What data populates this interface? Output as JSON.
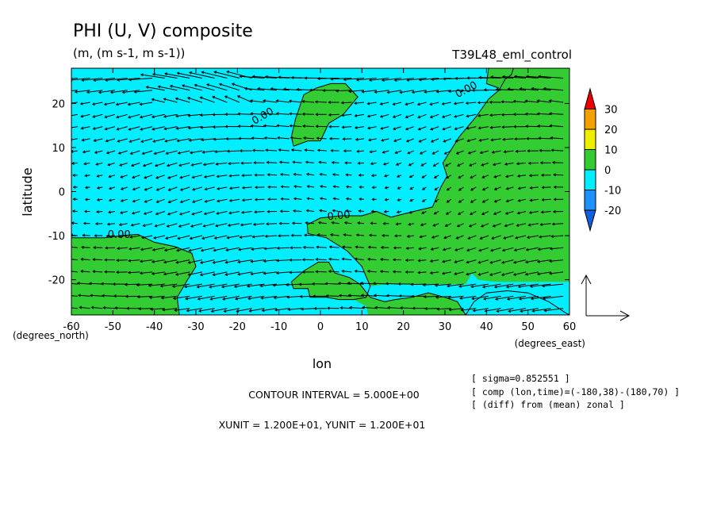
{
  "header": {
    "title": "PHI (U, V) composite",
    "units": "(m, (m s-1, m s-1))",
    "experiment": "T39L48_eml_control"
  },
  "footer": {
    "contour_interval": "CONTOUR INTERVAL = 5.000E+00",
    "vector_units": "XUNIT = 1.200E+01, YUNIT = 1.200E+01",
    "info_lines": [
      "[ sigma=0.852551 ]",
      "[ comp (lon,time)=(-180,38)-(180,70) ]",
      "[ (diff) from (mean) zonal ]"
    ]
  },
  "chart_data": {
    "type": "contour-vector",
    "xlabel": "lon",
    "ylabel": "latitude",
    "x_unit_label": "(degrees_east)",
    "y_unit_label": "(degrees_north)",
    "xlim": [
      -60,
      60
    ],
    "ylim": [
      -28,
      28
    ],
    "x_ticks": [
      -60,
      -50,
      -40,
      -30,
      -20,
      -10,
      0,
      10,
      20,
      30,
      40,
      50,
      60
    ],
    "y_ticks": [
      -20,
      -10,
      0,
      10,
      20
    ],
    "x_tick_labels": [
      "-60",
      "-50",
      "-40",
      "-30",
      "-20",
      "-10",
      "0",
      "10",
      "20",
      "30",
      "40",
      "50",
      "60"
    ],
    "y_tick_labels": [
      "-20",
      "-10",
      "0",
      "10",
      "20"
    ],
    "colorbar": {
      "labels": [
        "30",
        "20",
        "10",
        "0",
        "-10",
        "-20"
      ],
      "colors": [
        "#ee0000",
        "#f4a000",
        "#eeee00",
        "#33cc33",
        "#00eeff",
        "#1e90ff",
        "#1060e0"
      ]
    },
    "fill_colors": {
      "positive": "#33cc33",
      "negative": "#00eeff"
    },
    "contour_labels": [
      {
        "text": "0.00",
        "lon": -13.5,
        "lat": 16.5,
        "angle": -30
      },
      {
        "text": "0.00",
        "lon": 35.5,
        "lat": 22.5,
        "angle": -28
      },
      {
        "text": "0.00",
        "lon": 4.5,
        "lat": -6.2,
        "angle": -6
      },
      {
        "text": "0.00",
        "lon": -48.5,
        "lat": -10.5,
        "angle": 0
      }
    ],
    "regions": [
      {
        "name": "green-top",
        "points": [
          [
            -6.5,
            10.3
          ],
          [
            -7,
            12.5
          ],
          [
            -6,
            16.5
          ],
          [
            -4,
            22
          ],
          [
            -1,
            23.5
          ],
          [
            2.5,
            24.5
          ],
          [
            6,
            24.5
          ],
          [
            9,
            21.5
          ],
          [
            5.5,
            17.5
          ],
          [
            2,
            15.5
          ],
          [
            0,
            11.5
          ],
          [
            -3,
            11.5
          ]
        ]
      },
      {
        "name": "green-right",
        "points": [
          [
            46.5,
            28
          ],
          [
            60,
            28
          ],
          [
            60,
            -20.5
          ],
          [
            49,
            -20.5
          ],
          [
            45,
            -20.5
          ],
          [
            42,
            -20.5
          ],
          [
            38,
            -20
          ],
          [
            36.5,
            -18.5
          ],
          [
            35,
            -21
          ],
          [
            30,
            -21
          ],
          [
            25,
            -21
          ],
          [
            20,
            -21
          ],
          [
            16,
            -21
          ],
          [
            12,
            -21.5
          ],
          [
            10,
            -17
          ],
          [
            6.5,
            -13.5
          ],
          [
            1.5,
            -10.5
          ],
          [
            -3,
            -9.5
          ],
          [
            -3.2,
            -7.5
          ],
          [
            0,
            -6
          ],
          [
            5,
            -5.5
          ],
          [
            10,
            -5.5
          ],
          [
            13.5,
            -4.5
          ],
          [
            17,
            -5.8
          ],
          [
            22.5,
            -4.5
          ],
          [
            27,
            -3.5
          ],
          [
            29,
            1
          ],
          [
            30.5,
            3.5
          ],
          [
            29.5,
            6.5
          ],
          [
            31.5,
            9.5
          ],
          [
            33.5,
            12.5
          ],
          [
            37.5,
            17
          ],
          [
            40.5,
            21
          ],
          [
            43,
            23
          ],
          [
            44.5,
            25.5
          ],
          [
            46,
            26.5
          ]
        ]
      },
      {
        "name": "green-right-strip",
        "points": [
          [
            40.5,
            28
          ],
          [
            46.5,
            28
          ],
          [
            46,
            26.5
          ],
          [
            44.5,
            25.5
          ],
          [
            43,
            23.5
          ],
          [
            40,
            24.5
          ]
        ]
      },
      {
        "name": "green-left",
        "points": [
          [
            -60,
            -10.5
          ],
          [
            -56,
            -10.5
          ],
          [
            -52,
            -10.5
          ],
          [
            -48,
            -10
          ],
          [
            -44,
            -9.7
          ],
          [
            -40,
            -11.5
          ],
          [
            -35,
            -12.5
          ],
          [
            -31,
            -14
          ],
          [
            -30,
            -17
          ],
          [
            -32,
            -20
          ],
          [
            -34.5,
            -24
          ],
          [
            -34,
            -28
          ],
          [
            -60,
            -28
          ]
        ]
      },
      {
        "name": "green-bottom",
        "points": [
          [
            11.5,
            -28
          ],
          [
            11,
            -26
          ],
          [
            8,
            -24.5
          ],
          [
            4.5,
            -24.5
          ],
          [
            1.5,
            -24
          ],
          [
            -2.5,
            -24
          ],
          [
            -3,
            -22
          ],
          [
            -6.5,
            -22
          ],
          [
            -7,
            -20.5
          ],
          [
            -4,
            -18
          ],
          [
            -0.5,
            -16
          ],
          [
            2,
            -16
          ],
          [
            3.5,
            -18.5
          ],
          [
            7,
            -19.5
          ],
          [
            9.5,
            -21
          ],
          [
            12,
            -24
          ],
          [
            15.5,
            -25
          ],
          [
            18,
            -24.5
          ],
          [
            22,
            -24
          ],
          [
            26,
            -23
          ],
          [
            30,
            -24
          ],
          [
            33,
            -25
          ],
          [
            35,
            -28
          ]
        ]
      }
    ],
    "cyan_patches": [
      {
        "name": "cyan-bottom-right",
        "points": [
          [
            35,
            -28
          ],
          [
            37,
            -25
          ],
          [
            40,
            -23
          ],
          [
            45,
            -22.5
          ],
          [
            50,
            -23
          ],
          [
            55,
            -25
          ],
          [
            59,
            -27.5
          ],
          [
            60,
            -28
          ]
        ]
      }
    ],
    "contour_lines": [
      {
        "name": "contour-top",
        "points": [
          [
            -6.5,
            10.3
          ],
          [
            -7,
            12.5
          ],
          [
            -6,
            16.5
          ],
          [
            -4,
            22
          ],
          [
            -1,
            23.5
          ],
          [
            2.5,
            24.5
          ],
          [
            6,
            24.5
          ],
          [
            9,
            21.5
          ],
          [
            5.5,
            17.5
          ],
          [
            2,
            15.5
          ],
          [
            0,
            11.5
          ],
          [
            -3,
            11.5
          ],
          [
            -6.5,
            10.3
          ]
        ]
      },
      {
        "name": "contour-right",
        "points": [
          [
            46.5,
            28
          ],
          [
            46,
            26.5
          ],
          [
            44.5,
            25.5
          ],
          [
            43,
            23
          ],
          [
            40.5,
            21
          ],
          [
            37.5,
            17
          ],
          [
            33.5,
            12.5
          ],
          [
            31.5,
            9.5
          ],
          [
            29.5,
            6.5
          ],
          [
            30.5,
            3.5
          ],
          [
            29,
            1
          ],
          [
            27,
            -3.5
          ],
          [
            22.5,
            -4.5
          ],
          [
            17,
            -5.8
          ],
          [
            13.5,
            -4.5
          ],
          [
            10,
            -5.5
          ],
          [
            5,
            -5.5
          ],
          [
            0,
            -6
          ],
          [
            -3.2,
            -7.5
          ],
          [
            -3,
            -9.5
          ],
          [
            1.5,
            -10.5
          ],
          [
            6.5,
            -13.5
          ],
          [
            10,
            -17
          ],
          [
            12,
            -21.5
          ],
          [
            11,
            -24
          ],
          [
            8,
            -24.5
          ],
          [
            4.5,
            -24.5
          ],
          [
            1.5,
            -24
          ],
          [
            -2.5,
            -24
          ],
          [
            -3,
            -22
          ],
          [
            -6.5,
            -22
          ],
          [
            -7,
            -20.5
          ],
          [
            -4,
            -18
          ],
          [
            -0.5,
            -16
          ],
          [
            2,
            -16
          ],
          [
            3.5,
            -18.5
          ],
          [
            7,
            -19.5
          ],
          [
            9.5,
            -21
          ],
          [
            12,
            -24
          ],
          [
            15.5,
            -25
          ],
          [
            18,
            -24.5
          ],
          [
            22,
            -24
          ],
          [
            26,
            -23
          ],
          [
            30,
            -24
          ],
          [
            33,
            -25
          ],
          [
            35,
            -28
          ]
        ]
      },
      {
        "name": "contour-bottom-right",
        "points": [
          [
            35,
            -28
          ],
          [
            37,
            -25
          ],
          [
            40,
            -23
          ],
          [
            45,
            -22.5
          ],
          [
            50,
            -23
          ],
          [
            55,
            -25
          ],
          [
            59,
            -27.5
          ],
          [
            60,
            -28
          ]
        ]
      },
      {
        "name": "contour-left",
        "points": [
          [
            -60,
            -10.5
          ],
          [
            -56,
            -10.5
          ],
          [
            -52,
            -10.5
          ],
          [
            -48,
            -10
          ],
          [
            -44,
            -9.7
          ],
          [
            -40,
            -11.5
          ],
          [
            -35,
            -12.5
          ],
          [
            -31,
            -14
          ],
          [
            -30,
            -17
          ],
          [
            -32,
            -20
          ],
          [
            -34.5,
            -24
          ],
          [
            -34,
            -28
          ]
        ]
      },
      {
        "name": "contour-top-right-short",
        "points": [
          [
            40.5,
            28
          ],
          [
            40,
            24.5
          ],
          [
            43,
            23.5
          ]
        ]
      }
    ],
    "vector_field": {
      "lon_start": -58.5,
      "lon_step": 3,
      "lon_count": 40,
      "lat_start": -26.5,
      "lat_step": 2.75,
      "lat_count": 20,
      "reference_vector": {
        "u": 12,
        "v": 12
      }
    }
  }
}
